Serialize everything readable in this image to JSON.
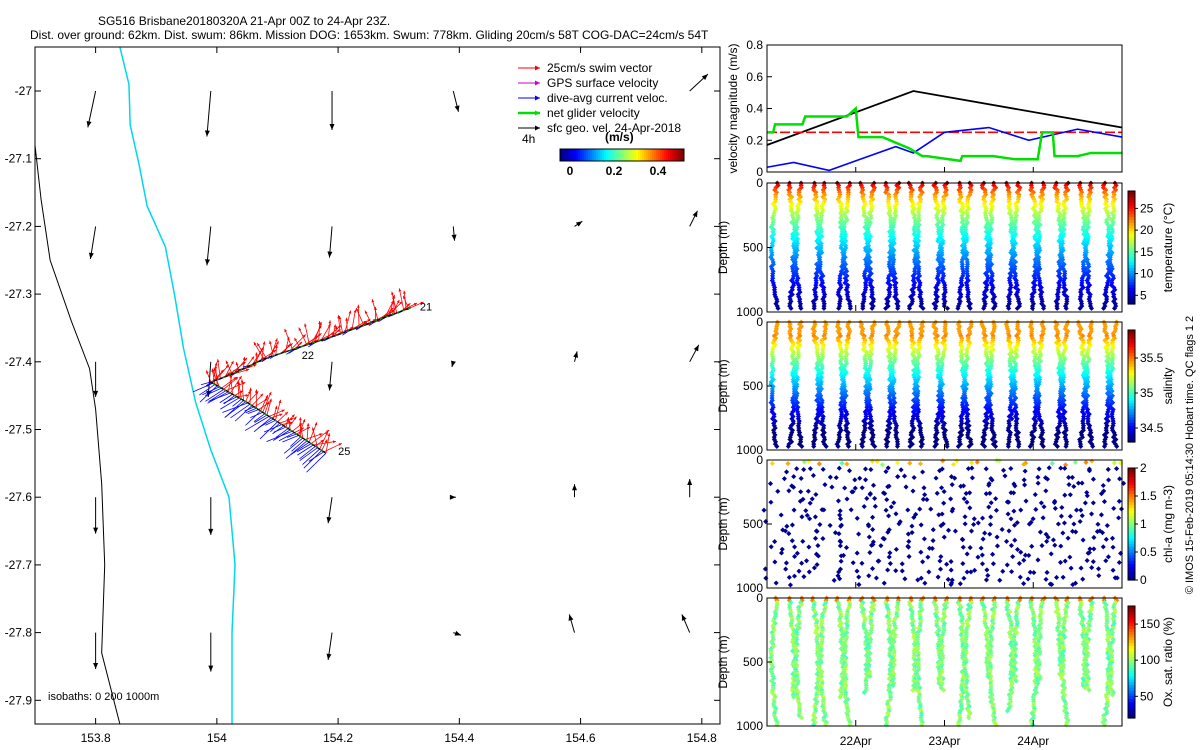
{
  "header": {
    "title": "SG516 Brisbane20180320A 21-Apr 00Z to 24-Apr 23Z.",
    "subtitle": "Dist. over ground: 62km. Dist. swum: 86km. Mission DOG: 1653km. Swum: 778km. Gliding 20cm/s 58T COG-DAC=24cm/s 54T"
  },
  "colors": {
    "coast": "#00d8e8",
    "isobath": "#000000",
    "swim": "#ff0000",
    "gps": "#cc00cc",
    "dac": "#0000ff",
    "net": "#00e000",
    "geo": "#000000"
  },
  "chart_data": [
    {
      "type": "map",
      "name": "track-map",
      "x_ticks": [
        "153.8",
        "154",
        "154.2",
        "154.4",
        "154.6",
        "154.8"
      ],
      "x_tick_values": [
        153.8,
        154.0,
        154.2,
        154.4,
        154.6,
        154.8
      ],
      "y_ticks": [
        "-27",
        "-27.1",
        "-27.2",
        "-27.3",
        "-27.4",
        "-27.5",
        "-27.6",
        "-27.7",
        "-27.8",
        "-27.9"
      ],
      "y_tick_values": [
        -27.0,
        -27.1,
        -27.2,
        -27.3,
        -27.4,
        -27.5,
        -27.6,
        -27.7,
        -27.8,
        -27.9
      ],
      "xlim": [
        153.7,
        154.83
      ],
      "ylim": [
        -27.935,
        -26.935
      ],
      "legend": {
        "items": [
          {
            "label": "25cm/s swim vector",
            "color": "#ff0000"
          },
          {
            "label": "GPS surface velocity",
            "color": "#cc00cc"
          },
          {
            "label": "dive-avg current veloc.",
            "color": "#0000ff"
          },
          {
            "label": "net glider velocity",
            "color": "#00e000"
          },
          {
            "label": "sfc geo. vel. 24-Apr-2018",
            "color": "#000000"
          }
        ],
        "scale_label": "4h",
        "colorbar_title": "(m/s)",
        "colorbar_ticks": [
          "0",
          "0.2",
          "0.4"
        ]
      },
      "track_labels": [
        {
          "text": "21",
          "lon": 154.335,
          "lat": -27.318
        },
        {
          "text": "22",
          "lon": 154.14,
          "lat": -27.39
        },
        {
          "text": "25",
          "lon": 154.2,
          "lat": -27.532
        }
      ],
      "track_lon": [
        154.32,
        154.2,
        154.08,
        154.02,
        153.99,
        154.05,
        154.12,
        154.18
      ],
      "track_lat": [
        -27.32,
        -27.36,
        -27.395,
        -27.42,
        -27.43,
        -27.46,
        -27.5,
        -27.535
      ],
      "isobath_label": "isobaths: 0   200   1000m",
      "geo_vectors": [
        {
          "lon": 153.8,
          "lat": -27.0,
          "u": -0.06,
          "v": -0.28
        },
        {
          "lon": 153.99,
          "lat": -27.0,
          "u": -0.03,
          "v": -0.35
        },
        {
          "lon": 154.19,
          "lat": -27.0,
          "u": 0.0,
          "v": -0.3
        },
        {
          "lon": 154.39,
          "lat": -27.0,
          "u": 0.04,
          "v": -0.16
        },
        {
          "lon": 154.78,
          "lat": -27.0,
          "u": 0.14,
          "v": 0.13
        },
        {
          "lon": 153.8,
          "lat": -27.2,
          "u": -0.04,
          "v": -0.25
        },
        {
          "lon": 153.99,
          "lat": -27.2,
          "u": -0.03,
          "v": -0.3
        },
        {
          "lon": 154.19,
          "lat": -27.2,
          "u": -0.02,
          "v": -0.24
        },
        {
          "lon": 154.39,
          "lat": -27.2,
          "u": 0.01,
          "v": -0.11
        },
        {
          "lon": 154.59,
          "lat": -27.2,
          "u": 0.06,
          "v": 0.04
        },
        {
          "lon": 154.78,
          "lat": -27.2,
          "u": 0.06,
          "v": 0.12
        },
        {
          "lon": 153.8,
          "lat": -27.4,
          "u": 0.0,
          "v": -0.27
        },
        {
          "lon": 153.99,
          "lat": -27.4,
          "u": -0.02,
          "v": -0.27
        },
        {
          "lon": 154.19,
          "lat": -27.4,
          "u": -0.02,
          "v": -0.22
        },
        {
          "lon": 154.39,
          "lat": -27.4,
          "u": -0.01,
          "v": -0.04
        },
        {
          "lon": 154.59,
          "lat": -27.4,
          "u": 0.02,
          "v": 0.08
        },
        {
          "lon": 154.78,
          "lat": -27.4,
          "u": 0.07,
          "v": 0.13
        },
        {
          "lon": 153.8,
          "lat": -27.6,
          "u": 0.0,
          "v": -0.28
        },
        {
          "lon": 153.99,
          "lat": -27.6,
          "u": 0.0,
          "v": -0.29
        },
        {
          "lon": 154.19,
          "lat": -27.6,
          "u": -0.03,
          "v": -0.2
        },
        {
          "lon": 154.39,
          "lat": -27.6,
          "u": 0.02,
          "v": 0.0
        },
        {
          "lon": 154.59,
          "lat": -27.6,
          "u": 0.0,
          "v": 0.1
        },
        {
          "lon": 154.78,
          "lat": -27.6,
          "u": 0.0,
          "v": 0.14
        },
        {
          "lon": 153.8,
          "lat": -27.8,
          "u": 0.0,
          "v": -0.28
        },
        {
          "lon": 153.99,
          "lat": -27.8,
          "u": 0.0,
          "v": -0.3
        },
        {
          "lon": 154.19,
          "lat": -27.8,
          "u": -0.03,
          "v": -0.21
        },
        {
          "lon": 154.39,
          "lat": -27.8,
          "u": 0.06,
          "v": -0.02
        },
        {
          "lon": 154.59,
          "lat": -27.8,
          "u": -0.04,
          "v": 0.14
        },
        {
          "lon": 154.78,
          "lat": -27.8,
          "u": -0.06,
          "v": 0.14
        }
      ]
    },
    {
      "type": "line",
      "name": "velocity-magnitude",
      "ylabel": "velocity magnitude (m/s)",
      "y_ticks": [
        "0",
        "0.2",
        "0.4",
        "0.6",
        "0.8"
      ],
      "ylim": [
        0,
        0.8
      ],
      "xlim": [
        0,
        4
      ],
      "series": [
        {
          "name": "glider speed",
          "color": "#000000",
          "x": [
            0,
            1.65,
            4
          ],
          "y": [
            0.17,
            0.51,
            0.28
          ]
        },
        {
          "name": "swim speed reference",
          "color": "#ff0000",
          "x": [
            0,
            4
          ],
          "y": [
            0.25,
            0.25
          ]
        },
        {
          "name": "dive-avg current",
          "color": "#0000ff",
          "x": [
            0,
            0.3,
            0.7,
            1.05,
            1.45,
            1.65,
            2.0,
            2.5,
            2.95,
            3.5,
            4.0
          ],
          "y": [
            0.03,
            0.06,
            0.01,
            0.08,
            0.16,
            0.12,
            0.25,
            0.28,
            0.2,
            0.27,
            0.22
          ]
        },
        {
          "name": "net glider velocity",
          "color": "#00e000",
          "x": [
            0,
            0.07,
            0.09,
            0.4,
            0.43,
            0.9,
            1.0,
            1.03,
            1.3,
            1.6,
            1.75,
            1.8,
            2.18,
            2.2,
            2.55,
            2.8,
            3.05,
            3.1,
            3.22,
            3.24,
            3.35,
            3.5,
            3.65,
            4.0
          ],
          "y": [
            0.25,
            0.25,
            0.3,
            0.3,
            0.35,
            0.35,
            0.4,
            0.22,
            0.22,
            0.15,
            0.1,
            0.1,
            0.07,
            0.1,
            0.1,
            0.08,
            0.08,
            0.25,
            0.25,
            0.1,
            0.1,
            0.1,
            0.12,
            0.12
          ]
        }
      ]
    },
    {
      "type": "scatter",
      "name": "temperature-section",
      "ylabel": "Depth (m)",
      "y_ticks": [
        "0",
        "500",
        "1000"
      ],
      "ylim": [
        1000,
        0
      ],
      "colorbar_label": "temperature (°C)",
      "colorbar_ticks": [
        "5",
        "10",
        "15",
        "20",
        "25"
      ],
      "clim": [
        3,
        29
      ],
      "profiles": 29,
      "max_depth": 980
    },
    {
      "type": "scatter",
      "name": "salinity-section",
      "ylabel": "Depth (m)",
      "y_ticks": [
        "0",
        "500",
        "1000"
      ],
      "ylim": [
        1000,
        0
      ],
      "colorbar_label": "salinity",
      "colorbar_ticks": [
        "34.5",
        "35",
        "35.5"
      ],
      "clim": [
        34.3,
        35.9
      ],
      "profiles": 29,
      "max_depth": 980
    },
    {
      "type": "scatter",
      "name": "chla-section",
      "ylabel": "Depth (m)",
      "y_ticks": [
        "0",
        "500",
        "1000"
      ],
      "ylim": [
        1000,
        0
      ],
      "colorbar_label": "chl-a (mg m-3)",
      "colorbar_ticks": [
        "0",
        "0.5",
        "1",
        "1.5",
        "2"
      ],
      "clim": [
        0,
        2
      ],
      "profiles": 29,
      "max_depth": 980
    },
    {
      "type": "scatter",
      "name": "oxygen-section",
      "ylabel": "Depth (m)",
      "y_ticks": [
        "0",
        "500",
        "1000"
      ],
      "ylim": [
        1000,
        0
      ],
      "colorbar_label": "Ox. sat. ratio (%)",
      "colorbar_ticks": [
        "50",
        "100",
        "150"
      ],
      "clim": [
        20,
        175
      ],
      "profiles": 29,
      "max_depth": 980,
      "x_ticks": [
        "22Apr",
        "23Apr",
        "24Apr"
      ],
      "x_tick_days": [
        1,
        2,
        3
      ]
    }
  ],
  "right_label": "© IMOS 15-Feb-2019 05:14:30 Hobart time. QC flags 1  2"
}
